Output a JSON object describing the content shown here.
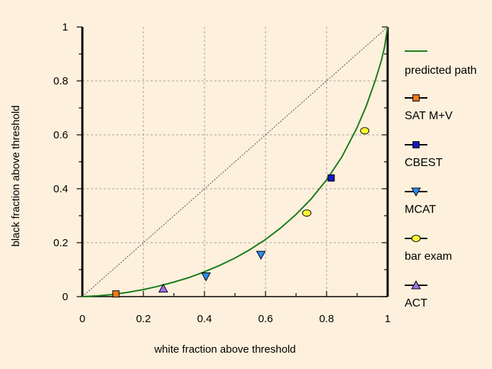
{
  "chart_data": {
    "type": "scatter",
    "xlabel": "white fraction above threshold",
    "ylabel": "black fraction above threshold",
    "xlim": [
      0,
      1
    ],
    "ylim": [
      0,
      1
    ],
    "x_ticks": [
      "0",
      "0.2",
      "0.4",
      "0.6",
      "0.8",
      "1"
    ],
    "y_ticks": [
      "0",
      "0.2",
      "0.4",
      "0.6",
      "0.8",
      "1"
    ],
    "grid": true,
    "legend_position": "right",
    "diagonal_reference": true,
    "curve": {
      "name": "predicted path",
      "color": "#1a7a1a",
      "x": [
        0,
        0.05,
        0.1,
        0.15,
        0.2,
        0.25,
        0.3,
        0.35,
        0.4,
        0.45,
        0.5,
        0.55,
        0.6,
        0.65,
        0.7,
        0.75,
        0.8,
        0.85,
        0.9,
        0.93,
        0.96,
        0.98,
        0.99,
        1.0
      ],
      "y": [
        0,
        0.003,
        0.008,
        0.016,
        0.026,
        0.039,
        0.054,
        0.071,
        0.092,
        0.116,
        0.143,
        0.175,
        0.212,
        0.255,
        0.305,
        0.363,
        0.433,
        0.518,
        0.627,
        0.707,
        0.803,
        0.878,
        0.926,
        1.0
      ]
    },
    "series": [
      {
        "name": "SAT M+V",
        "marker": "square",
        "color": "#f07818",
        "x": [
          0.11
        ],
        "y": [
          0.01
        ]
      },
      {
        "name": "CBEST",
        "marker": "square",
        "color": "#1818c0",
        "x": [
          0.815
        ],
        "y": [
          0.44
        ]
      },
      {
        "name": "MCAT",
        "marker": "triangle-down",
        "color": "#2a8cf0",
        "x": [
          0.405,
          0.585
        ],
        "y": [
          0.075,
          0.155
        ]
      },
      {
        "name": "bar exam",
        "marker": "circle",
        "color": "#ffff33",
        "x": [
          0.735,
          0.925
        ],
        "y": [
          0.31,
          0.615
        ]
      },
      {
        "name": "ACT",
        "marker": "triangle-up",
        "color": "#a070e8",
        "x": [
          0.265
        ],
        "y": [
          0.03
        ]
      }
    ]
  }
}
